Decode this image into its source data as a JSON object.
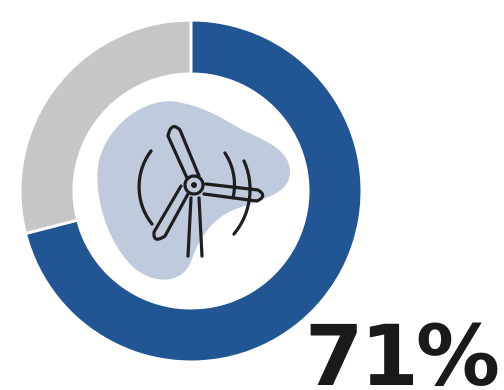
{
  "chart_data": {
    "type": "pie",
    "style": "donut",
    "values": [
      71,
      29
    ],
    "colors": [
      "#215594",
      "#c6c6c6"
    ],
    "value_label": "71%",
    "center_icon": "wind-turbine-icon",
    "center_blob_color": "#bfcbdd",
    "icon_color": "#1e1e1e",
    "label_color": "#1a1a1a"
  }
}
